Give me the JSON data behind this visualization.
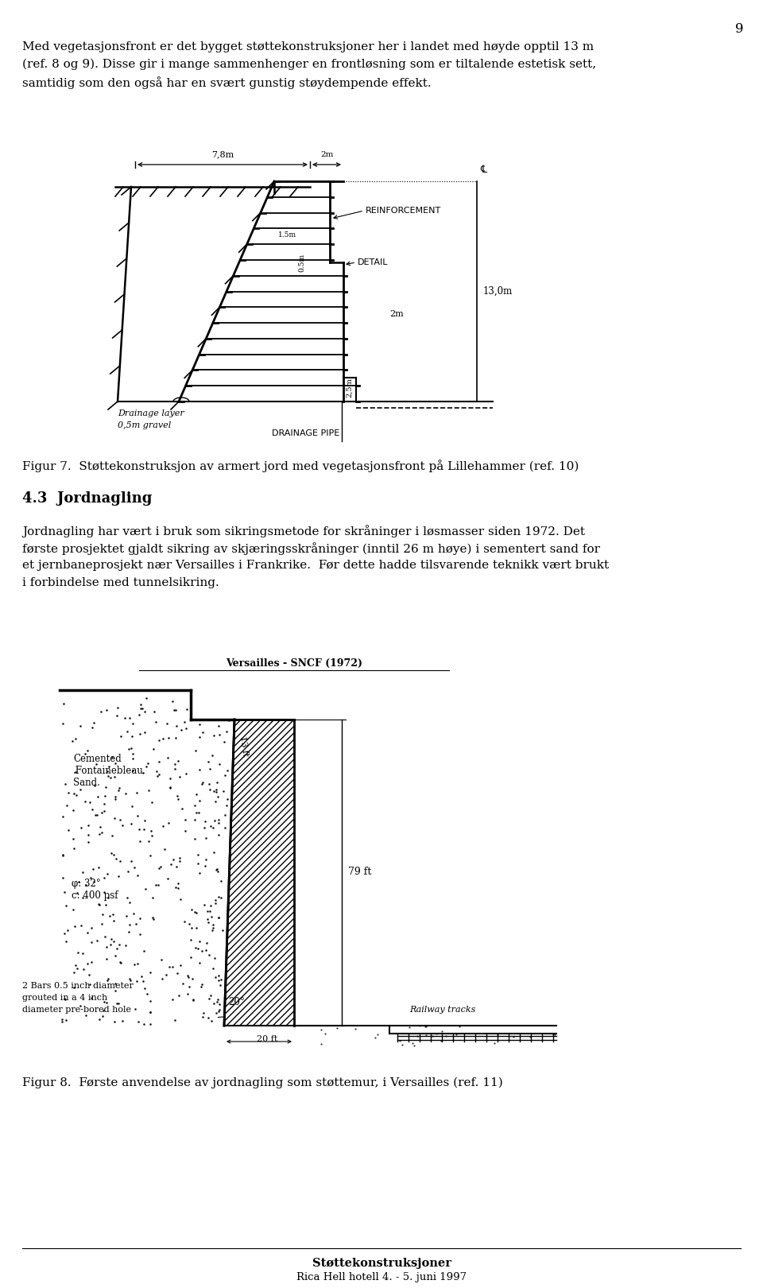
{
  "page_number": "9",
  "bg_color": "#ffffff",
  "text_color": "#000000",
  "para1_line1": "Med vegetasjonsfront er det bygget støttekonstruksjoner her i landet med høyde opptil 13 m",
  "para1_line2": "(ref. 8 og 9). Disse gir i mange sammenhenger en frontløsning som er tiltalende estetisk sett,",
  "para1_line3": "samtidig som den også har en svært gunstig støydempende effekt.",
  "fig7_caption": "Figur 7.  Støttekonstruksjon av armert jord med vegetasjonsfront på Lillehammer (ref. 10)",
  "section_heading": "4.3  Jordnagling",
  "para2_line1": "Jordnagling har vært i bruk som sikringsmetode for skråninger i løsmasser siden 1972. Det",
  "para2_line2": "første prosjektet gjaldt sikring av skjæringsskråninger (inntil 26 m høye) i sementert sand for",
  "para2_line3": "et jernbaneprosjekt nær Versailles i Frankrike.  Før dette hadde tilsvarende teknikk vært brukt",
  "para2_line4": "i forbindelse med tunnelsikring.",
  "fig8_caption": "Figur 8.  Første anvendelse av jordnagling som støttemur, i Versailles (ref. 11)",
  "footer_line1": "Støttekonstruksjoner",
  "footer_line2": "Rica Hell hotell 4. - 5. juni 1997"
}
